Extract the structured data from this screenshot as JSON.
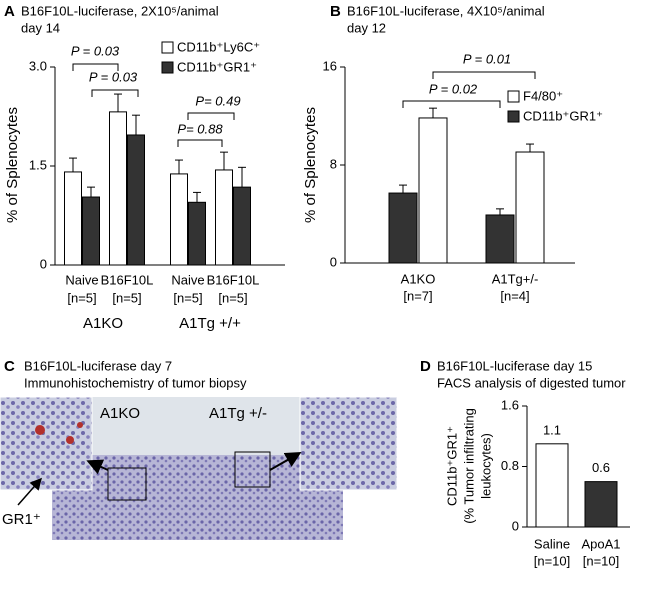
{
  "chart_data": [
    {
      "type": "bar",
      "panel_label": "A",
      "title": "B16F10L-luciferase, 2X10⁵/animal",
      "subtitle": "day 14",
      "y_label": "% of Splenocytes",
      "categories": [
        "Naive",
        "B16F10L",
        "Naive",
        "B16F10L"
      ],
      "n_labels": [
        "[n=5]",
        "[n=5]",
        "[n=5]",
        "[n=5]"
      ],
      "groups": [
        "A1KO",
        "A1Tg +/+"
      ],
      "series": [
        {
          "name": "CD11b⁺Ly6C⁺",
          "color": "#ffffff",
          "values": [
            1.41,
            2.32,
            1.38,
            1.44
          ],
          "errors": [
            0.21,
            0.27,
            0.21,
            0.27
          ]
        },
        {
          "name": "CD11b⁺GR1⁺",
          "color": "#333333",
          "values": [
            1.03,
            1.97,
            0.95,
            1.18
          ],
          "errors": [
            0.15,
            0.3,
            0.15,
            0.3
          ]
        }
      ],
      "ylim": [
        0,
        3
      ],
      "yticks": [
        0,
        1.5,
        {
          "value": 3,
          "label": "3.0"
        }
      ],
      "annotations": [
        "P = 0.03",
        "P = 0.03",
        "P= 0.88",
        "P= 0.49"
      ]
    },
    {
      "type": "bar",
      "panel_label": "B",
      "title": "B16F10L-luciferase, 4X10⁵/animal",
      "subtitle": "day 12",
      "y_label": "% of Splenocytes",
      "categories": [
        "A1KO",
        "A1Tg+/-"
      ],
      "n_labels": [
        "[n=7]",
        "[n=4]"
      ],
      "series": [
        {
          "name": "F4/80⁺",
          "color": "#ffffff",
          "values": [
            11.84,
            9.06
          ],
          "errors": [
            0.8,
            0.65
          ]
        },
        {
          "name": "CD11b⁺GR1⁺",
          "color": "#333333",
          "values": [
            5.71,
            3.92
          ],
          "errors": [
            0.65,
            0.5
          ]
        }
      ],
      "ylim": [
        0,
        16
      ],
      "yticks": [
        0,
        8,
        16
      ],
      "annotations": [
        "P = 0.02",
        "P = 0.01"
      ]
    },
    {
      "type": "bar",
      "panel_label": "D",
      "title": "B16F10L-luciferase day 15",
      "subtitle": "FACS analysis of digested tumor",
      "y_label": [
        "CD11b⁺GR1⁺",
        "(% Tumor infiltrating",
        "leukocytes)"
      ],
      "categories": [
        "Saline",
        "ApoA1"
      ],
      "n_labels": [
        "[n=10]",
        "[n=10]"
      ],
      "values": [
        1.1,
        0.6
      ],
      "colors": [
        "#ffffff",
        "#333333"
      ],
      "ylim": [
        0,
        1.6
      ],
      "yticks": [
        0,
        0.8,
        1.6
      ]
    }
  ],
  "image_panel": {
    "panel_label": "C",
    "title": "B16F10L-luciferase day 7",
    "subtitle": "Immunohistochemistry of tumor biopsy",
    "left_label": "A1KO",
    "right_label": "A1Tg +/-",
    "marker_label": "GR1⁺"
  }
}
